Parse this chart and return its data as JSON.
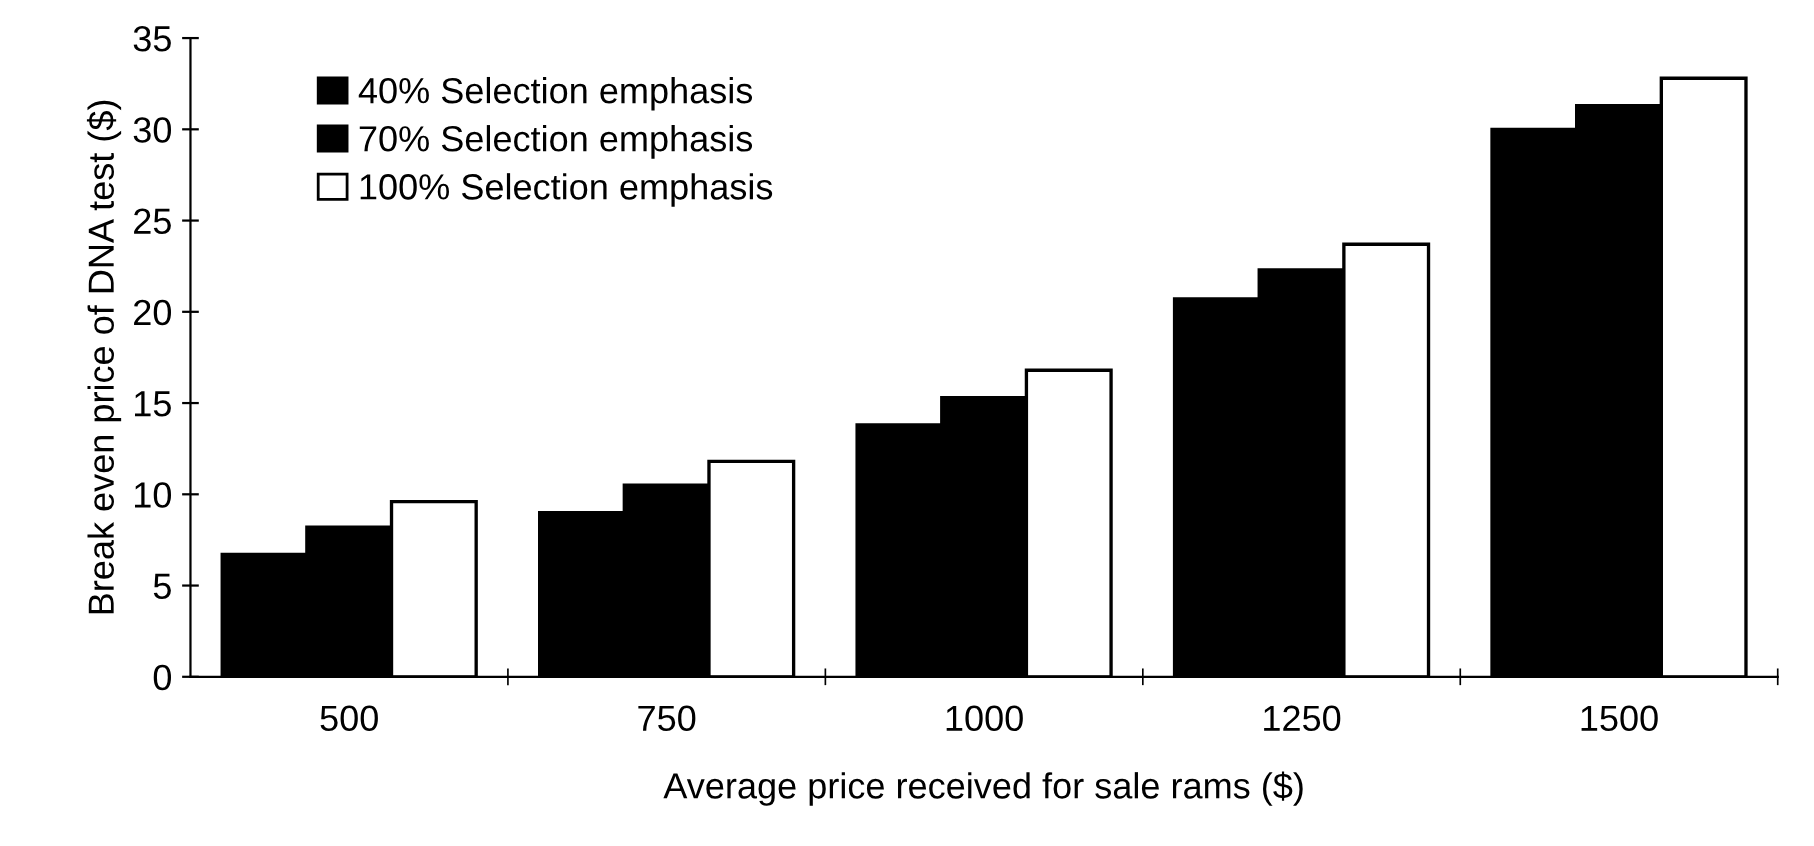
{
  "chart_data": {
    "type": "bar",
    "xlabel": "Average price received for sale rams ($)",
    "ylabel": "Break even price of DNA test ($)",
    "categories": [
      "500",
      "750",
      "1000",
      "1250",
      "1500"
    ],
    "series": [
      {
        "name": "40% Selection emphasis",
        "color": "#000000",
        "values": [
          6.7,
          9.0,
          13.8,
          20.7,
          30.0
        ]
      },
      {
        "name": "70% Selection emphasis",
        "color": "#000000",
        "values": [
          8.2,
          10.5,
          15.3,
          22.3,
          31.3
        ]
      },
      {
        "name": "100% Selection emphasis",
        "color": "#ffffff",
        "values": [
          9.6,
          11.8,
          16.8,
          23.7,
          32.8
        ]
      }
    ],
    "ylim": [
      0,
      35
    ],
    "yticks": [
      0,
      5,
      10,
      15,
      20,
      25,
      30,
      35
    ],
    "grid": false,
    "legend": "top left"
  }
}
